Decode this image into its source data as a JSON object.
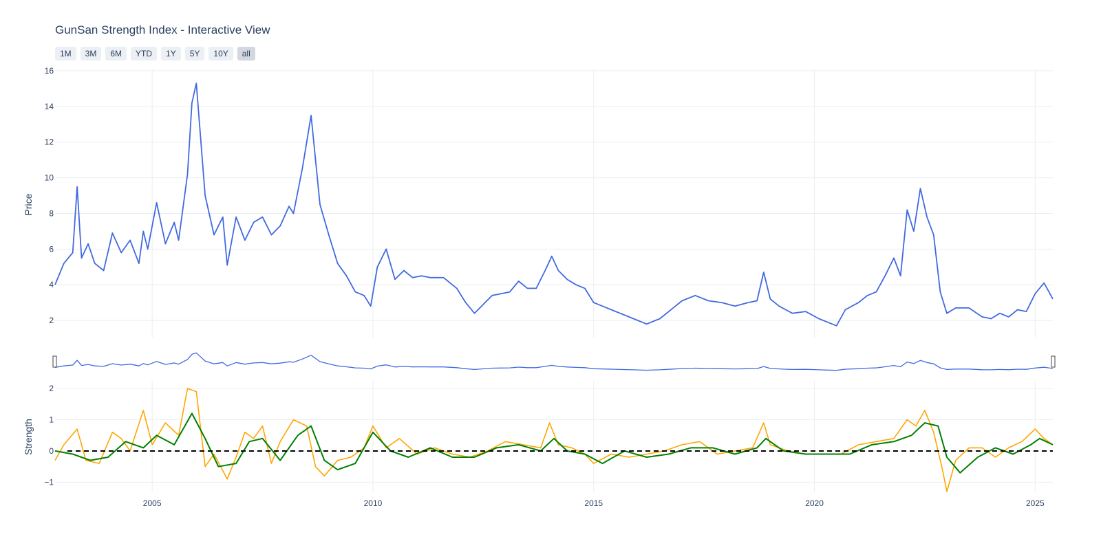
{
  "page": {
    "title": "GunSan Strength Index - Interactive View"
  },
  "range_selector": {
    "buttons": [
      {
        "label": "1M",
        "active": false
      },
      {
        "label": "3M",
        "active": false
      },
      {
        "label": "6M",
        "active": false
      },
      {
        "label": "YTD",
        "active": false
      },
      {
        "label": "1Y",
        "active": false
      },
      {
        "label": "5Y",
        "active": false
      },
      {
        "label": "10Y",
        "active": false
      },
      {
        "label": "all",
        "active": true
      }
    ]
  },
  "colors": {
    "price": "#4169e1",
    "strength": "#ffa500",
    "strength_smooth": "#008000",
    "zero_line": "#000000",
    "grid": "#ebedf2",
    "text": "#2a3f5f"
  },
  "chart_data": [
    {
      "type": "line",
      "panel": "price",
      "ylabel": "Price",
      "ylim": [
        1,
        16
      ],
      "yticks": [
        "2",
        "4",
        "6",
        "8",
        "10",
        "12",
        "14",
        "16"
      ],
      "xlim": [
        2002.8,
        2025.4
      ],
      "xticks": [
        "2005",
        "2010",
        "2015",
        "2020",
        "2025"
      ],
      "grid": true,
      "series": [
        {
          "x": [
            2002.8,
            2003.0,
            2003.2,
            2003.3,
            2003.4,
            2003.55,
            2003.7,
            2003.9,
            2004.1,
            2004.3,
            2004.5,
            2004.7,
            2004.8,
            2004.9,
            2005.1,
            2005.3,
            2005.5,
            2005.6,
            2005.8,
            2005.9,
            2006.0,
            2006.2,
            2006.4,
            2006.6,
            2006.7,
            2006.9,
            2007.1,
            2007.3,
            2007.5,
            2007.7,
            2007.9,
            2008.1,
            2008.2,
            2008.4,
            2008.6,
            2008.8,
            2009.0,
            2009.2,
            2009.4,
            2009.6,
            2009.8,
            2009.95,
            2010.1,
            2010.3,
            2010.5,
            2010.7,
            2010.9,
            2011.1,
            2011.3,
            2011.6,
            2011.9,
            2012.1,
            2012.3,
            2012.5,
            2012.7,
            2012.9,
            2013.1,
            2013.3,
            2013.5,
            2013.7,
            2013.9,
            2014.05,
            2014.2,
            2014.4,
            2014.6,
            2014.8,
            2015.0,
            2015.3,
            2015.6,
            2015.9,
            2016.2,
            2016.5,
            2016.8,
            2017.0,
            2017.3,
            2017.6,
            2017.9,
            2018.2,
            2018.5,
            2018.7,
            2018.85,
            2019.0,
            2019.2,
            2019.5,
            2019.8,
            2020.1,
            2020.3,
            2020.5,
            2020.7,
            2021.0,
            2021.2,
            2021.4,
            2021.6,
            2021.8,
            2021.95,
            2022.1,
            2022.25,
            2022.4,
            2022.55,
            2022.7,
            2022.85,
            2023.0,
            2023.2,
            2023.5,
            2023.8,
            2024.0,
            2024.2,
            2024.4,
            2024.6,
            2024.8,
            2025.0,
            2025.2,
            2025.4
          ],
          "y": [
            4.0,
            5.2,
            5.8,
            9.5,
            5.5,
            6.3,
            5.2,
            4.8,
            6.9,
            5.8,
            6.5,
            5.2,
            7.0,
            6.0,
            8.6,
            6.3,
            7.5,
            6.5,
            10.2,
            14.2,
            15.3,
            9.0,
            6.8,
            7.8,
            5.1,
            7.8,
            6.5,
            7.5,
            7.8,
            6.8,
            7.3,
            8.4,
            8.0,
            10.5,
            13.5,
            8.5,
            6.8,
            5.2,
            4.5,
            3.6,
            3.4,
            2.8,
            5.0,
            6.0,
            4.3,
            4.8,
            4.4,
            4.5,
            4.4,
            4.4,
            3.8,
            3.0,
            2.4,
            2.9,
            3.4,
            3.5,
            3.6,
            4.2,
            3.8,
            3.8,
            4.8,
            5.6,
            4.8,
            4.3,
            4.0,
            3.8,
            3.0,
            2.7,
            2.4,
            2.1,
            1.8,
            2.1,
            2.7,
            3.1,
            3.4,
            3.1,
            3.0,
            2.8,
            3.0,
            3.1,
            4.7,
            3.2,
            2.8,
            2.4,
            2.5,
            2.1,
            1.9,
            1.7,
            2.6,
            3.0,
            3.4,
            3.6,
            4.5,
            5.5,
            4.5,
            8.2,
            7.0,
            9.4,
            7.8,
            6.8,
            3.6,
            2.4,
            2.7,
            2.7,
            2.2,
            2.1,
            2.4,
            2.2,
            2.6,
            2.5,
            3.5,
            4.1,
            3.2
          ]
        }
      ]
    },
    {
      "type": "line",
      "panel": "strength",
      "ylabel": "Strength",
      "ylim": [
        -1.3,
        2.2
      ],
      "yticks": [
        "−1",
        "0",
        "1",
        "2"
      ],
      "xlim": [
        2002.8,
        2025.4
      ],
      "xticks": [
        "2005",
        "2010",
        "2015",
        "2020",
        "2025"
      ],
      "grid": true,
      "zero_line": {
        "y": 0,
        "style": "dashed"
      },
      "series": [
        {
          "x": [
            2002.8,
            2003.0,
            2003.3,
            2003.5,
            2003.8,
            2004.1,
            2004.3,
            2004.5,
            2004.8,
            2005.0,
            2005.3,
            2005.6,
            2005.8,
            2006.0,
            2006.2,
            2006.4,
            2006.7,
            2006.9,
            2007.1,
            2007.3,
            2007.5,
            2007.7,
            2007.9,
            2008.2,
            2008.5,
            2008.7,
            2008.9,
            2009.2,
            2009.5,
            2009.8,
            2010.0,
            2010.3,
            2010.6,
            2011.0,
            2011.4,
            2011.8,
            2012.2,
            2012.6,
            2013.0,
            2013.4,
            2013.8,
            2014.0,
            2014.2,
            2014.5,
            2014.8,
            2015.0,
            2015.4,
            2015.8,
            2016.2,
            2016.6,
            2017.0,
            2017.4,
            2017.8,
            2018.2,
            2018.6,
            2018.85,
            2019.0,
            2019.4,
            2019.8,
            2020.2,
            2020.6,
            2021.0,
            2021.4,
            2021.8,
            2022.1,
            2022.3,
            2022.5,
            2022.7,
            2022.9,
            2023.0,
            2023.2,
            2023.5,
            2023.8,
            2024.1,
            2024.4,
            2024.7,
            2025.0,
            2025.2,
            2025.4
          ],
          "y": [
            -0.3,
            0.2,
            0.7,
            -0.3,
            -0.4,
            0.6,
            0.4,
            0.0,
            1.3,
            0.2,
            0.9,
            0.5,
            2.0,
            1.9,
            -0.5,
            -0.1,
            -0.9,
            -0.2,
            0.6,
            0.4,
            0.8,
            -0.4,
            0.3,
            1.0,
            0.8,
            -0.5,
            -0.8,
            -0.3,
            -0.2,
            0.1,
            0.8,
            0.1,
            0.4,
            -0.1,
            0.1,
            -0.1,
            -0.2,
            0.0,
            0.3,
            0.2,
            0.1,
            0.9,
            0.2,
            0.1,
            -0.1,
            -0.4,
            -0.1,
            -0.2,
            -0.1,
            0.0,
            0.2,
            0.3,
            -0.1,
            0.0,
            0.1,
            0.9,
            0.2,
            0.0,
            -0.1,
            -0.1,
            -0.1,
            0.2,
            0.3,
            0.4,
            1.0,
            0.8,
            1.3,
            0.6,
            -0.6,
            -1.3,
            -0.3,
            0.1,
            0.1,
            -0.2,
            0.1,
            0.3,
            0.7,
            0.4,
            0.2
          ]
        },
        {
          "x": [
            2002.8,
            2003.2,
            2003.6,
            2004.0,
            2004.4,
            2004.8,
            2005.1,
            2005.5,
            2005.9,
            2006.2,
            2006.5,
            2006.9,
            2007.2,
            2007.5,
            2007.9,
            2008.3,
            2008.6,
            2008.9,
            2009.2,
            2009.6,
            2010.0,
            2010.4,
            2010.8,
            2011.3,
            2011.8,
            2012.3,
            2012.8,
            2013.3,
            2013.8,
            2014.1,
            2014.4,
            2014.8,
            2015.2,
            2015.7,
            2016.2,
            2016.7,
            2017.2,
            2017.7,
            2018.2,
            2018.7,
            2018.9,
            2019.3,
            2019.8,
            2020.3,
            2020.8,
            2021.3,
            2021.8,
            2022.2,
            2022.5,
            2022.8,
            2023.0,
            2023.3,
            2023.7,
            2024.1,
            2024.5,
            2024.9,
            2025.1,
            2025.4
          ],
          "y": [
            0.0,
            -0.1,
            -0.3,
            -0.2,
            0.3,
            0.1,
            0.5,
            0.2,
            1.2,
            0.4,
            -0.5,
            -0.4,
            0.3,
            0.4,
            -0.3,
            0.5,
            0.8,
            -0.3,
            -0.6,
            -0.4,
            0.6,
            0.0,
            -0.2,
            0.1,
            -0.2,
            -0.2,
            0.1,
            0.2,
            0.0,
            0.4,
            0.0,
            -0.1,
            -0.4,
            0.0,
            -0.2,
            -0.1,
            0.1,
            0.1,
            -0.1,
            0.1,
            0.4,
            0.0,
            -0.1,
            -0.1,
            -0.1,
            0.2,
            0.3,
            0.5,
            0.9,
            0.8,
            -0.2,
            -0.7,
            -0.2,
            0.1,
            -0.1,
            0.2,
            0.4,
            0.2
          ]
        }
      ]
    }
  ]
}
